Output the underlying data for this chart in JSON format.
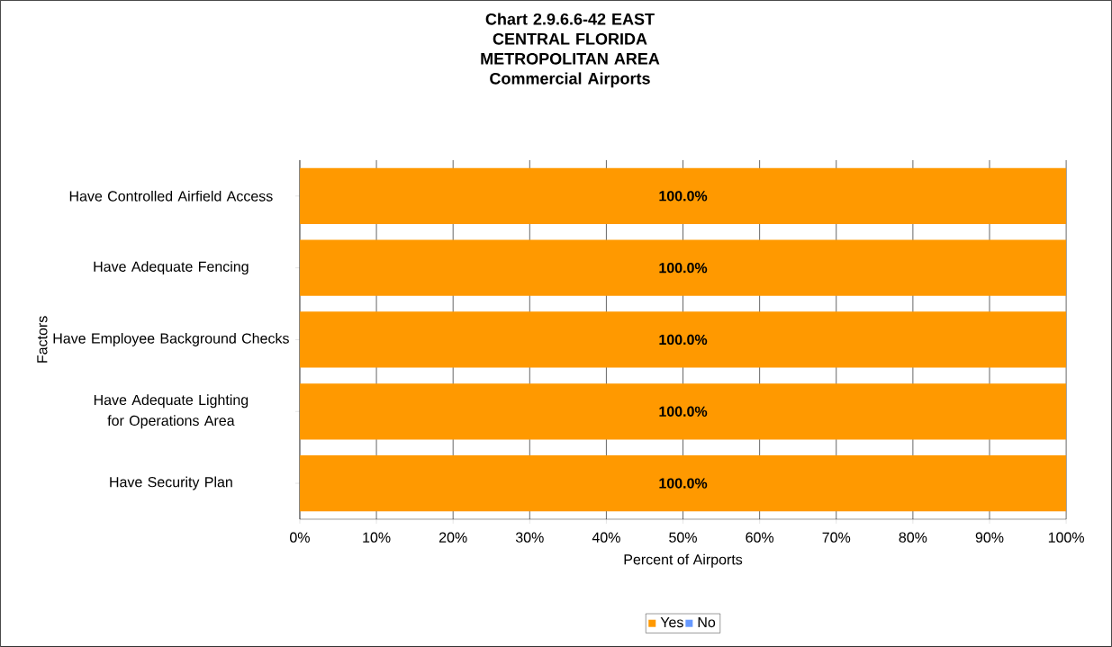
{
  "chart_data": {
    "type": "bar",
    "orientation": "horizontal",
    "stacked": true,
    "title": "Chart 2.9.6.6-42 EAST CENTRAL FLORIDA METROPOLITAN AREA Commercial Airports",
    "xlabel": "Percent of Airports",
    "ylabel": "Factors",
    "categories": [
      "Have Controlled Airfield Access",
      "Have Adequate Fencing",
      "Have Employee Background Checks",
      "Have Adequate Lighting for Operations Area",
      "Have Security Plan"
    ],
    "series": [
      {
        "name": "Yes",
        "color": "#ff9900",
        "values": [
          100,
          100,
          100,
          100,
          100
        ],
        "value_labels": [
          "100.0%",
          "100.0%",
          "100.0%",
          "100.0%",
          "100.0%"
        ]
      },
      {
        "name": "No",
        "color": "#6699ff",
        "values": [
          0,
          0,
          0,
          0,
          0
        ]
      }
    ],
    "xlim": [
      0,
      100
    ],
    "xticks": [
      {
        "value": 0,
        "label": "0%"
      },
      {
        "value": 10,
        "label": "10%"
      },
      {
        "value": 20,
        "label": "20%"
      },
      {
        "value": 30,
        "label": "30%"
      },
      {
        "value": 40,
        "label": "40%"
      },
      {
        "value": 50,
        "label": "50%"
      },
      {
        "value": 60,
        "label": "60%"
      },
      {
        "value": 70,
        "label": "70%"
      },
      {
        "value": 80,
        "label": "80%"
      },
      {
        "value": 90,
        "label": "90%"
      },
      {
        "value": 100,
        "label": "100%"
      }
    ],
    "grid": "x",
    "legend": "bottom"
  }
}
